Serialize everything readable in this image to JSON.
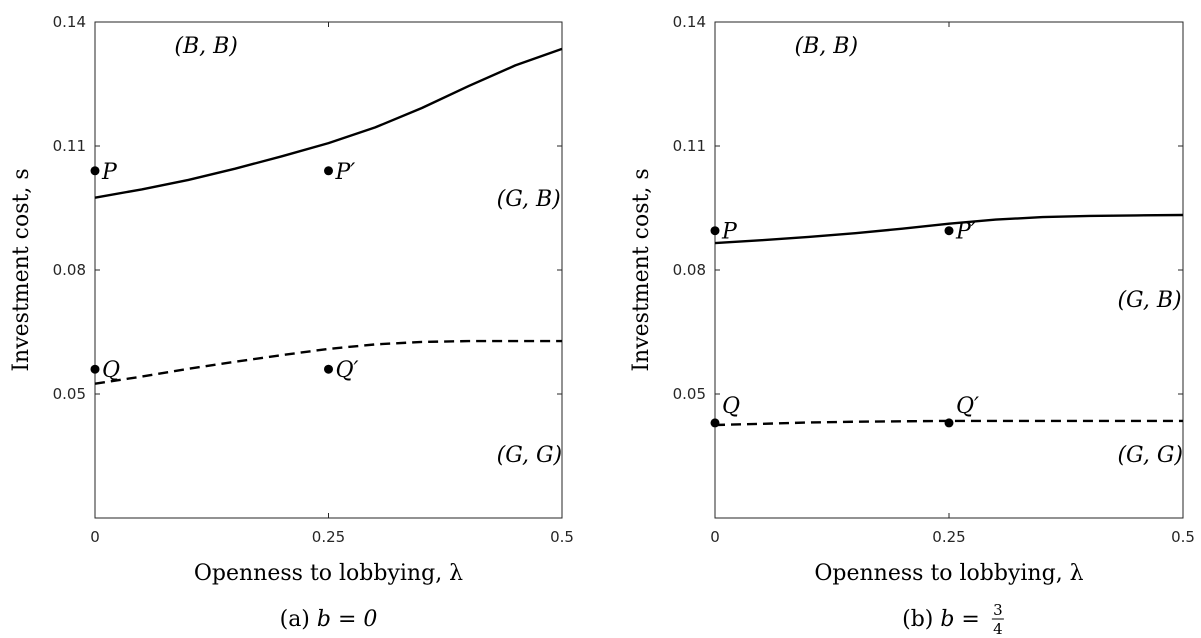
{
  "chart_data": [
    {
      "type": "line",
      "xlabel": "Openness to lobbying, λ",
      "ylabel": "Investment cost, s",
      "caption": {
        "prefix": "(a) ",
        "formula": "b = 0"
      },
      "xlim": [
        0,
        0.5
      ],
      "ylim": [
        0.02,
        0.14
      ],
      "xticks": [
        "0",
        "0.25",
        "0.5"
      ],
      "xtick_values": [
        0,
        0.25,
        0.5
      ],
      "yticks": [
        "0.05",
        "0.08",
        "0.11",
        "0.14"
      ],
      "ytick_values": [
        0.05,
        0.08,
        0.11,
        0.14
      ],
      "grid": false,
      "series": [
        {
          "style": "solid",
          "x": [
            0,
            0.05,
            0.1,
            0.15,
            0.2,
            0.25,
            0.3,
            0.35,
            0.4,
            0.45,
            0.5
          ],
          "y": [
            0.0975,
            0.0995,
            0.1018,
            0.1045,
            0.1075,
            0.1107,
            0.1145,
            0.1192,
            0.1245,
            0.1295,
            0.1335
          ]
        },
        {
          "style": "dashed",
          "x": [
            0,
            0.05,
            0.1,
            0.15,
            0.2,
            0.25,
            0.3,
            0.35,
            0.4,
            0.45,
            0.5
          ],
          "y": [
            0.0525,
            0.0542,
            0.0561,
            0.0578,
            0.0594,
            0.0609,
            0.062,
            0.0626,
            0.0628,
            0.0628,
            0.0628
          ]
        }
      ],
      "points": [
        {
          "label": "P",
          "x": 0,
          "y": 0.104
        },
        {
          "label": "P′",
          "x": 0.25,
          "y": 0.104
        },
        {
          "label": "Q",
          "x": 0,
          "y": 0.056
        },
        {
          "label": "Q′",
          "x": 0.25,
          "y": 0.056
        }
      ],
      "annotations": [
        {
          "text": "(B, B)",
          "x": 0.085,
          "y": 0.1325
        },
        {
          "text": "(G, B)",
          "x": 0.43,
          "y": 0.0955
        },
        {
          "text": "(G, G)",
          "x": 0.43,
          "y": 0.0335
        }
      ]
    },
    {
      "type": "line",
      "xlabel": "Openness to lobbying, λ",
      "ylabel": "Investment cost, s",
      "caption": {
        "prefix": "(b) ",
        "formula": "b = ",
        "frac_num": "3",
        "frac_den": "4"
      },
      "xlim": [
        0,
        0.5
      ],
      "ylim": [
        0.02,
        0.14
      ],
      "xticks": [
        "0",
        "0.25",
        "0.5"
      ],
      "xtick_values": [
        0,
        0.25,
        0.5
      ],
      "yticks": [
        "0.05",
        "0.08",
        "0.11",
        "0.14"
      ],
      "ytick_values": [
        0.05,
        0.08,
        0.11,
        0.14
      ],
      "grid": false,
      "series": [
        {
          "style": "solid",
          "x": [
            0,
            0.05,
            0.1,
            0.15,
            0.2,
            0.25,
            0.3,
            0.35,
            0.4,
            0.45,
            0.5
          ],
          "y": [
            0.0865,
            0.0872,
            0.088,
            0.0889,
            0.09,
            0.0912,
            0.0922,
            0.0928,
            0.0931,
            0.0932,
            0.0933
          ]
        },
        {
          "style": "dashed",
          "x": [
            0,
            0.05,
            0.1,
            0.15,
            0.2,
            0.25,
            0.3,
            0.35,
            0.4,
            0.45,
            0.5
          ],
          "y": [
            0.0425,
            0.0428,
            0.0431,
            0.0433,
            0.0434,
            0.0435,
            0.0435,
            0.0435,
            0.0435,
            0.0435,
            0.0435
          ]
        }
      ],
      "points": [
        {
          "label": "P",
          "x": 0,
          "y": 0.0895
        },
        {
          "label": "P′",
          "x": 0.25,
          "y": 0.0895
        },
        {
          "label": "Q",
          "x": 0,
          "y": 0.043
        },
        {
          "label": "Q′",
          "x": 0.25,
          "y": 0.043
        }
      ],
      "annotations": [
        {
          "text": "(B, B)",
          "x": 0.085,
          "y": 0.1325
        },
        {
          "text": "(G, B)",
          "x": 0.43,
          "y": 0.071
        },
        {
          "text": "(G, G)",
          "x": 0.43,
          "y": 0.0335
        }
      ]
    }
  ]
}
